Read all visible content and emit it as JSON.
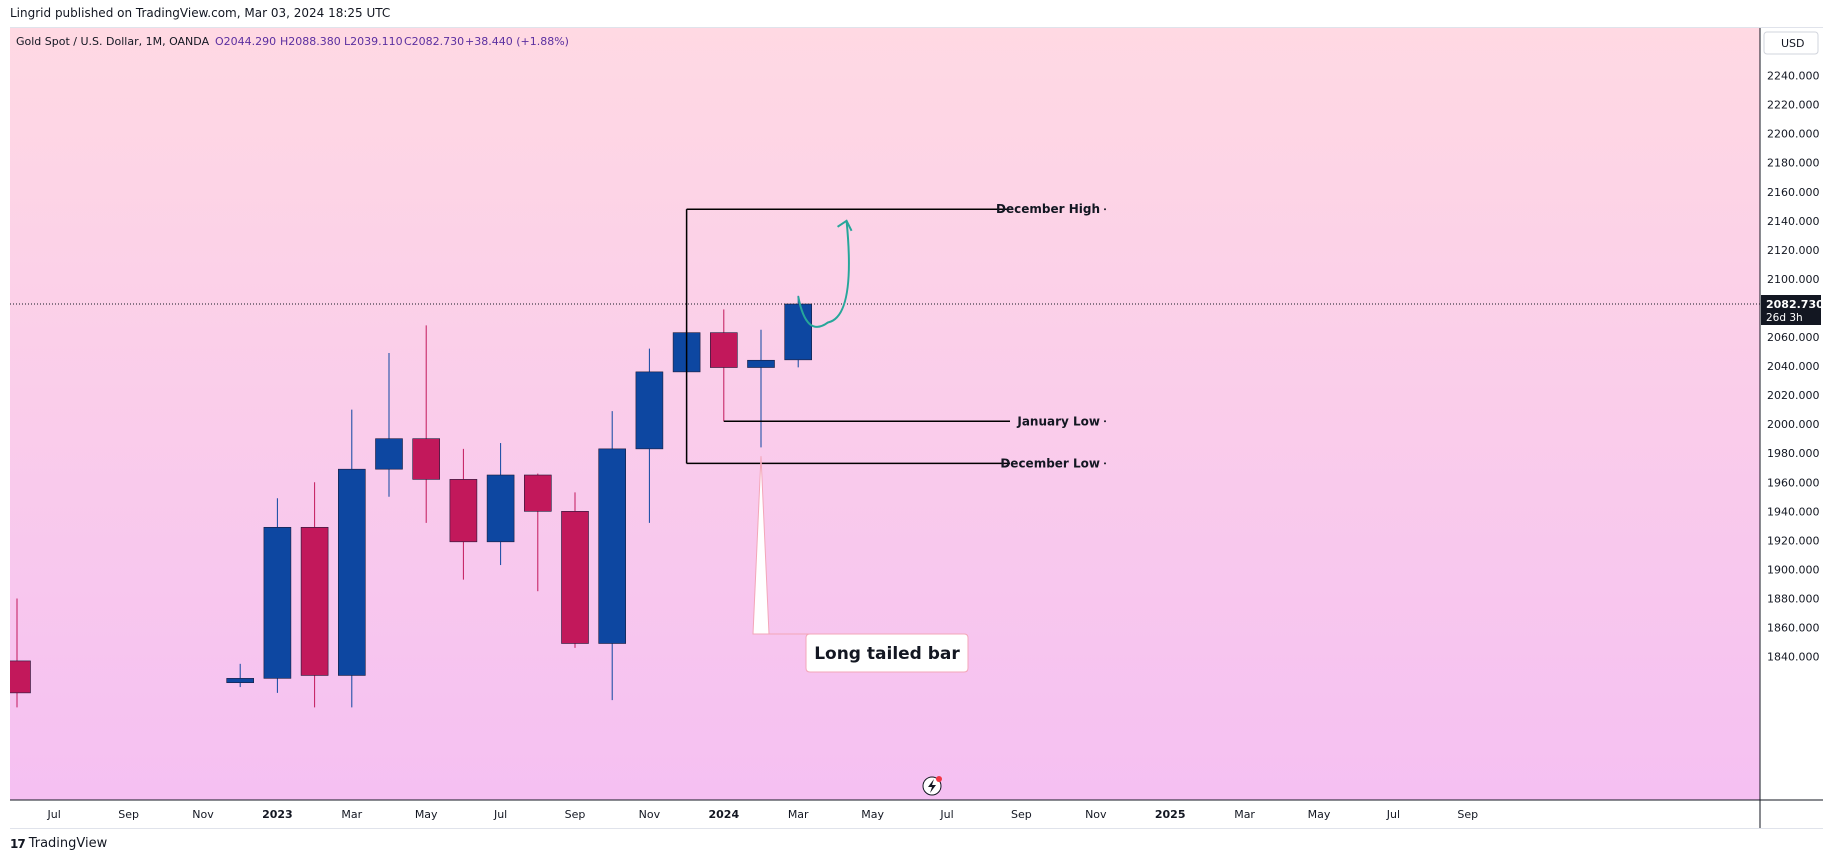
{
  "header": {
    "published_by": "Lingrid published on TradingView.com, Mar 03, 2024 18:25 UTC"
  },
  "footer": {
    "brand": "TradingView"
  },
  "legend": {
    "symbol": "Gold Spot / U.S. Dollar, 1M, OANDA",
    "open": "O2044.290",
    "high": "H2088.380",
    "low": "L2039.110",
    "close": "C2082.730",
    "change": "+38.440 (+1.88%)"
  },
  "colors": {
    "background_top": "#ffd9e3",
    "background_bottom": "#f5c0f2",
    "up": "#0d47a1",
    "down": "#c2185b",
    "arrow": "#26a69a",
    "price_tag": "#131722"
  },
  "price_tag": {
    "price": "2082.730",
    "countdown": "26d 3h"
  },
  "currency_label": "USD",
  "chart_data": {
    "type": "candlestick",
    "title": "Gold Spot / U.S. Dollar, 1M, OANDA",
    "ylim": [
      1820,
      2260
    ],
    "y_ticks": [
      1840,
      1860,
      1880,
      1900,
      1920,
      1940,
      1960,
      1980,
      2000,
      2020,
      2040,
      2060,
      2080,
      2100,
      2120,
      2140,
      2160,
      2180,
      2200,
      2220,
      2240
    ],
    "x_labels": [
      {
        "i": 1,
        "label": "Jul",
        "bold": false
      },
      {
        "i": 3,
        "label": "Sep",
        "bold": false
      },
      {
        "i": 5,
        "label": "Nov",
        "bold": false
      },
      {
        "i": 7,
        "label": "2023",
        "bold": true
      },
      {
        "i": 9,
        "label": "Mar",
        "bold": false
      },
      {
        "i": 11,
        "label": "May",
        "bold": false
      },
      {
        "i": 13,
        "label": "Jul",
        "bold": false
      },
      {
        "i": 15,
        "label": "Sep",
        "bold": false
      },
      {
        "i": 17,
        "label": "Nov",
        "bold": false
      },
      {
        "i": 19,
        "label": "2024",
        "bold": true
      },
      {
        "i": 21,
        "label": "Mar",
        "bold": false
      },
      {
        "i": 23,
        "label": "May",
        "bold": false
      },
      {
        "i": 25,
        "label": "Jul",
        "bold": false
      },
      {
        "i": 27,
        "label": "Sep",
        "bold": false
      },
      {
        "i": 29,
        "label": "Nov",
        "bold": false
      },
      {
        "i": 31,
        "label": "2025",
        "bold": true
      },
      {
        "i": 33,
        "label": "Mar",
        "bold": false
      },
      {
        "i": 35,
        "label": "May",
        "bold": false
      },
      {
        "i": 37,
        "label": "Jul",
        "bold": false
      },
      {
        "i": 39,
        "label": "Sep",
        "bold": false
      }
    ],
    "candles": [
      {
        "i": 0,
        "o": 1837,
        "h": 1880,
        "l": 1805,
        "c": 1815
      },
      {
        "i": 6,
        "o": 1822,
        "h": 1835,
        "l": 1819,
        "c": 1825
      },
      {
        "i": 7,
        "o": 1825,
        "h": 1949,
        "l": 1815,
        "c": 1929
      },
      {
        "i": 8,
        "o": 1929,
        "h": 1960,
        "l": 1805,
        "c": 1827
      },
      {
        "i": 9,
        "o": 1827,
        "h": 2010,
        "l": 1805,
        "c": 1969
      },
      {
        "i": 10,
        "o": 1969,
        "h": 2049,
        "l": 1950,
        "c": 1990
      },
      {
        "i": 11,
        "o": 1990,
        "h": 2068,
        "l": 1932,
        "c": 1962
      },
      {
        "i": 12,
        "o": 1962,
        "h": 1983,
        "l": 1893,
        "c": 1919
      },
      {
        "i": 13,
        "o": 1919,
        "h": 1987,
        "l": 1903,
        "c": 1965
      },
      {
        "i": 14,
        "o": 1965,
        "h": 1966,
        "l": 1885,
        "c": 1940
      },
      {
        "i": 15,
        "o": 1940,
        "h": 1953,
        "l": 1846,
        "c": 1849
      },
      {
        "i": 16,
        "o": 1849,
        "h": 2009,
        "l": 1810,
        "c": 1983
      },
      {
        "i": 17,
        "o": 1983,
        "h": 2052,
        "l": 1932,
        "c": 2036
      },
      {
        "i": 18,
        "o": 2036,
        "h": 2148,
        "l": 1973,
        "c": 2063
      },
      {
        "i": 19,
        "o": 2063,
        "h": 2079,
        "l": 2002,
        "c": 2039
      },
      {
        "i": 20,
        "o": 2039,
        "h": 2065,
        "l": 1984,
        "c": 2044
      },
      {
        "i": 21,
        "o": 2044.29,
        "h": 2088.38,
        "l": 2039.11,
        "c": 2082.73
      }
    ],
    "annotations": {
      "december_high": {
        "label": "December High",
        "price": 2148,
        "from_i": 18
      },
      "january_low": {
        "label": "January Low",
        "price": 2002,
        "from_i": 19
      },
      "december_low": {
        "label": "December Low",
        "price": 1973,
        "from_i": 18
      },
      "callout": {
        "label": "Long tailed bar",
        "target_i": 20,
        "target_price": 1978
      },
      "arrow": {
        "from_i": 21,
        "from_price": 2088,
        "mid_i": 21.8,
        "mid_price": 2070,
        "to_i": 22.3,
        "to_price": 2140
      }
    },
    "current_price": 2082.73
  }
}
